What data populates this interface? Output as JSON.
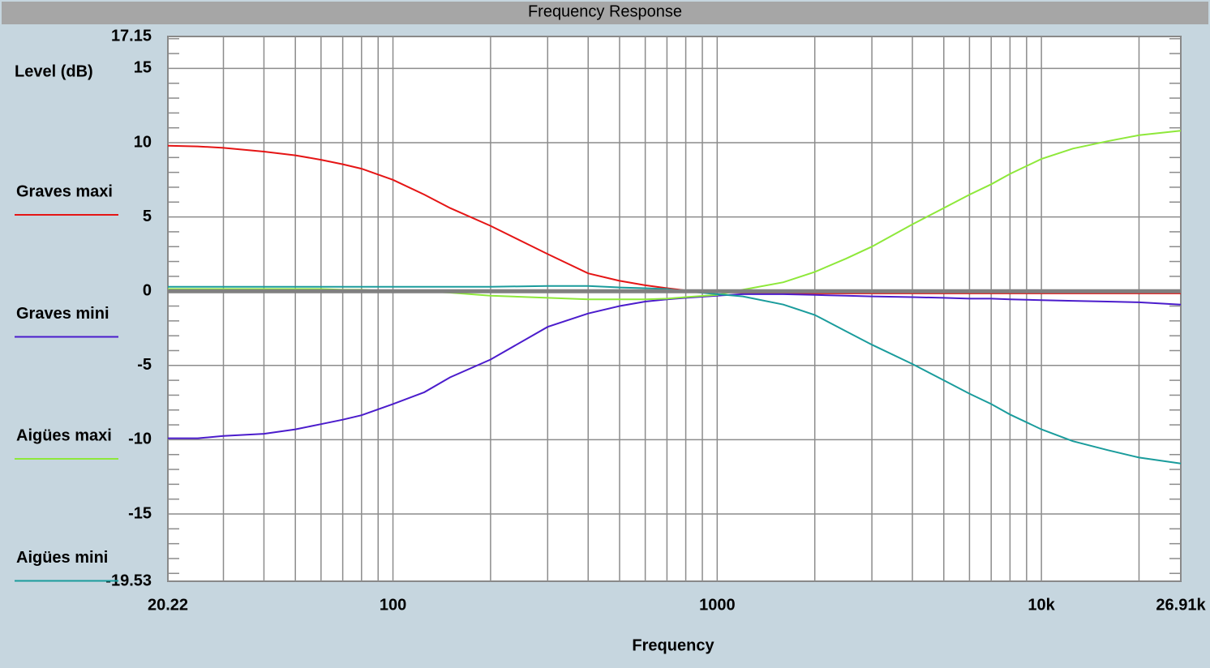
{
  "chart_data": {
    "type": "line",
    "title": "Frequency Response",
    "x_label": "Frequency",
    "y_label": "Level (dB)",
    "x_scale": "log",
    "xlim": [
      20.22,
      26910
    ],
    "ylim": [
      -19.53,
      17.15
    ],
    "xticks": [
      20.22,
      100,
      1000,
      {
        "value": 10000,
        "label": "10k"
      },
      {
        "value": 26910,
        "label": "26.91k"
      }
    ],
    "minor_xticks": [
      30,
      40,
      50,
      60,
      70,
      80,
      90,
      200,
      300,
      400,
      500,
      600,
      700,
      800,
      900,
      2000,
      3000,
      4000,
      5000,
      6000,
      7000,
      8000,
      9000,
      20000
    ],
    "yticks": [
      17.15,
      15,
      10,
      5,
      0,
      -5,
      -10,
      -15,
      -19.53
    ],
    "minor_yticks": [
      -19,
      -18,
      -17,
      -16,
      -14,
      -13,
      -12,
      -11,
      -9,
      -8,
      -7,
      -6,
      -4,
      -3,
      -2,
      -1,
      1,
      2,
      3,
      4,
      6,
      7,
      8,
      9,
      11,
      12,
      13,
      14,
      16,
      17
    ],
    "grid": true,
    "reference_line": 0,
    "legend": "left",
    "x": [
      20.22,
      25,
      30,
      40,
      50,
      60,
      70,
      80,
      100,
      125,
      150,
      200,
      300,
      400,
      500,
      600,
      700,
      800,
      1000,
      1200,
      1600,
      2000,
      2500,
      3000,
      4000,
      5000,
      6000,
      7000,
      8000,
      10000,
      12500,
      16000,
      20000,
      26910
    ],
    "series": [
      {
        "name": "Graves maxi",
        "color": "#e51515",
        "values": [
          9.8,
          9.75,
          9.65,
          9.4,
          9.15,
          8.85,
          8.55,
          8.25,
          7.5,
          6.5,
          5.6,
          4.4,
          2.5,
          1.2,
          0.7,
          0.4,
          0.2,
          0.05,
          -0.05,
          -0.1,
          -0.15,
          -0.15,
          -0.15,
          -0.15,
          -0.15,
          -0.15,
          -0.15,
          -0.15,
          -0.15,
          -0.15,
          -0.15,
          -0.15,
          -0.15,
          -0.15
        ]
      },
      {
        "name": "Graves mini",
        "color": "#4b1ccc",
        "values": [
          -9.9,
          -9.9,
          -9.75,
          -9.6,
          -9.3,
          -8.95,
          -8.65,
          -8.35,
          -7.6,
          -6.8,
          -5.8,
          -4.6,
          -2.4,
          -1.5,
          -1.0,
          -0.7,
          -0.55,
          -0.45,
          -0.3,
          -0.2,
          -0.2,
          -0.25,
          -0.3,
          -0.35,
          -0.4,
          -0.45,
          -0.5,
          -0.5,
          -0.55,
          -0.6,
          -0.65,
          -0.7,
          -0.75,
          -0.9
        ]
      },
      {
        "name": "Aigües maxi",
        "color": "#8ee83a",
        "values": [
          0.15,
          0.15,
          0.15,
          0.15,
          0.15,
          0.15,
          0.1,
          0.1,
          0.0,
          0.0,
          -0.1,
          -0.3,
          -0.45,
          -0.55,
          -0.55,
          -0.55,
          -0.5,
          -0.4,
          -0.25,
          0.1,
          0.6,
          1.3,
          2.2,
          3.0,
          4.5,
          5.6,
          6.5,
          7.2,
          7.9,
          8.9,
          9.6,
          10.1,
          10.5,
          10.8
        ]
      },
      {
        "name": "Aigües mini",
        "color": "#1a9c9c",
        "values": [
          0.3,
          0.3,
          0.3,
          0.3,
          0.3,
          0.3,
          0.3,
          0.3,
          0.3,
          0.3,
          0.3,
          0.3,
          0.35,
          0.35,
          0.25,
          0.2,
          0.15,
          0.0,
          -0.2,
          -0.35,
          -0.9,
          -1.6,
          -2.7,
          -3.6,
          -4.9,
          -6.0,
          -6.9,
          -7.6,
          -8.3,
          -9.3,
          -10.1,
          -10.7,
          -11.2,
          -11.6
        ]
      }
    ]
  }
}
